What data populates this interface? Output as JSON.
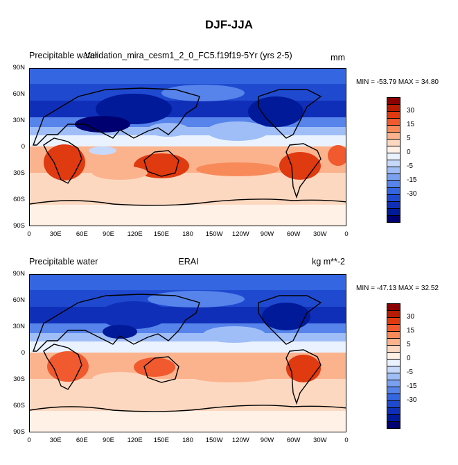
{
  "figure": {
    "title": "DJF-JJA"
  },
  "panels": [
    {
      "left_title": "Precipitable water",
      "center_title": "Validation_mira_cesm1_2_0_FC5.f19f19-5Yr (yrs 2-5)",
      "right_title": "mm",
      "minmax": "MIN = -53.79 MAX =  34.80"
    },
    {
      "left_title": "Precipitable water",
      "center_title": "ERAI",
      "right_title": "kg m**-2",
      "minmax": "MIN = -47.13 MAX =  32.52"
    }
  ],
  "lat_ticks": [
    "90N",
    "60N",
    "30N",
    "0",
    "30S",
    "60S",
    "90S"
  ],
  "lon_ticks": [
    "0",
    "30E",
    "60E",
    "90E",
    "120E",
    "150E",
    "180",
    "150W",
    "120W",
    "90W",
    "60W",
    "30W",
    "0"
  ],
  "colorbar": {
    "labels": [
      "30",
      "15",
      "5",
      "0",
      "-5",
      "-15",
      "-30"
    ],
    "colors": [
      "#8b0000",
      "#b81c00",
      "#e03a10",
      "#f05a2e",
      "#f88a5a",
      "#fbb38e",
      "#fdd8c0",
      "#fff1e6",
      "#eaf2ff",
      "#c6d9fb",
      "#9fbef7",
      "#7aa0f1",
      "#5684eb",
      "#3366e0",
      "#1f4ad0",
      "#102fb8",
      "#001a99",
      "#000070"
    ]
  }
}
